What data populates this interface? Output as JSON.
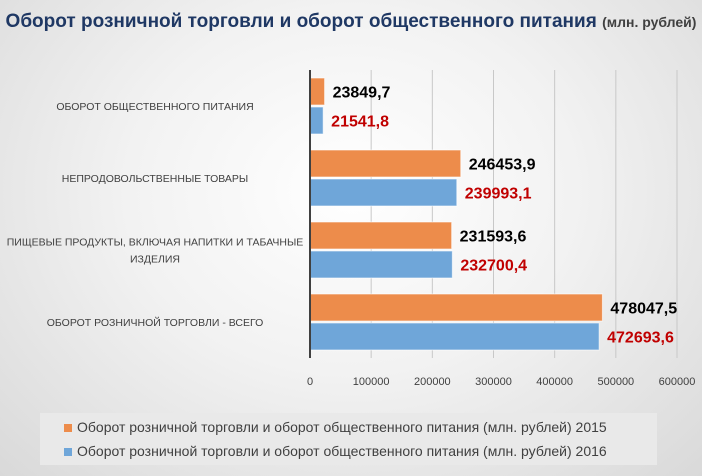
{
  "title": {
    "main": "Оборот розничной торговли и оборот общественного питания",
    "unit": "(млн. рублей)"
  },
  "chart_data": {
    "type": "bar",
    "orientation": "horizontal",
    "categories": [
      "ОБОРОТ ОБЩЕСТВЕННОГО ПИТАНИЯ",
      "НЕПРОДОВОЛЬСТВЕННЫЕ ТОВАРЫ",
      "ПИЩЕВЫЕ ПРОДУКТЫ, ВКЛЮЧАЯ НАПИТКИ И ТАБАЧНЫЕ ИЗДЕЛИЯ",
      "ОБОРОТ РОЗНИЧНОЙ ТОРГОВЛИ - ВСЕГО"
    ],
    "series": [
      {
        "name": "Оборот розничной торговли и оборот общественного питания (млн. рублей) 2015",
        "color": "#ed8c4b",
        "label_color": "#000000",
        "values": [
          23849.7,
          246453.9,
          231593.6,
          478047.5
        ],
        "labels": [
          "23849,7",
          "246453,9",
          "231593,6",
          "478047,5"
        ]
      },
      {
        "name": "Оборот розничной торговли и оборот общественного питания (млн. рублей) 2016",
        "color": "#6fa6d9",
        "label_color": "#c00000",
        "values": [
          21541.8,
          239993.1,
          232700.4,
          472693.6
        ],
        "labels": [
          "21541,8",
          "239993,1",
          "232700,4",
          "472693,6"
        ]
      }
    ],
    "xlim": [
      0,
      600000
    ],
    "ticks": [
      0,
      100000,
      200000,
      300000,
      400000,
      500000,
      600000
    ],
    "tick_labels": [
      "0",
      "100000",
      "200000",
      "300000",
      "400000",
      "500000",
      "600000"
    ],
    "grid": true,
    "legend_position": "bottom"
  }
}
